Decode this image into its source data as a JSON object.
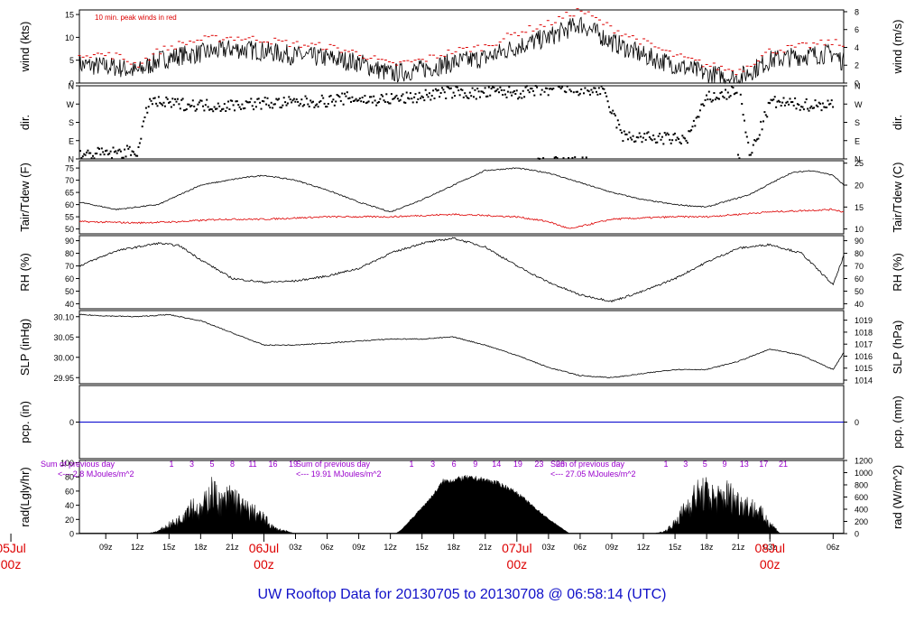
{
  "page_title": "UW Rooftop Data for 20130705  to  20130708 @ 06:58:14  (UTC)",
  "colors": {
    "axis": "#000000",
    "peak": "#dd0000",
    "dewpoint": "#dd0000",
    "precip": "#0000cc",
    "annotation": "#9900cc",
    "date_label": "#dd0000",
    "title": "#1010c8"
  },
  "x_axis": {
    "hour_ticks": [
      "09z",
      "12z",
      "15z",
      "18z",
      "21z",
      "03z",
      "06z",
      "09z",
      "12z",
      "15z",
      "18z",
      "21z",
      "03z",
      "06z",
      "09z",
      "12z",
      "15z",
      "18z",
      "21z",
      "03z",
      "06z"
    ],
    "day_labels": [
      {
        "date": "05Jul",
        "time": "00z"
      },
      {
        "date": "06Jul",
        "time": "00z"
      },
      {
        "date": "07Jul",
        "time": "00z"
      },
      {
        "date": "08Jul",
        "time": "00z"
      }
    ]
  },
  "panels": {
    "wind": {
      "ylabel": "wind (kts)",
      "ylabel_right": "wind (m/s)",
      "yticks": [
        "0",
        "5",
        "10",
        "15"
      ],
      "yticks_right": [
        "0",
        "2",
        "4",
        "6",
        "8"
      ],
      "legend": "10 min. peak winds in red"
    },
    "dir": {
      "ylabel": "dir.",
      "ylabel_right": "dir.",
      "yticks": [
        "N",
        "E",
        "S",
        "W",
        "N"
      ],
      "yticks_right": [
        "N",
        "E",
        "S",
        "W",
        "N"
      ]
    },
    "temp": {
      "ylabel": "Tair/Tdew (F)",
      "ylabel_right": "Tair/Tdew (C)",
      "yticks": [
        "50",
        "55",
        "60",
        "65",
        "70",
        "75"
      ],
      "yticks_right": [
        "10",
        "15",
        "20",
        "25"
      ]
    },
    "rh": {
      "ylabel": "RH (%)",
      "ylabel_right": "RH (%)",
      "yticks": [
        "40",
        "50",
        "60",
        "70",
        "80",
        "90"
      ],
      "yticks_right": [
        "40",
        "50",
        "60",
        "70",
        "80",
        "90"
      ]
    },
    "slp": {
      "ylabel": "SLP (inHg)",
      "ylabel_right": "SLP (hPa)",
      "yticks": [
        "29.95",
        "30.00",
        "30.05",
        "30.10"
      ],
      "yticks_right": [
        "1014",
        "1015",
        "1016",
        "1017",
        "1018",
        "1019"
      ]
    },
    "pcp": {
      "ylabel": "pcp. (in)",
      "ylabel_right": "pcp. (mm)",
      "yticks": [
        "0"
      ],
      "yticks_right": [
        "0"
      ]
    },
    "rad": {
      "ylabel": "rad(Lgly/hr)",
      "ylabel_right": "rad (W/m^2)",
      "yticks": [
        "0",
        "20",
        "40",
        "60",
        "80",
        "100"
      ],
      "yticks_right": [
        "0",
        "200",
        "400",
        "600",
        "800",
        "1000",
        "1200"
      ],
      "daily_sums": [
        {
          "line1": "Sum of previous day",
          "line2": "<--- 2.8 MJoules/m^2"
        },
        {
          "line1": "Sum of previous day",
          "line2": "<--- 19.91 MJoules/m^2"
        },
        {
          "line1": "Sum of previous day",
          "line2": "<--- 27.05 MJoules/m^2"
        }
      ],
      "hour_marks": [
        [
          "1",
          "3",
          "5",
          "8",
          "11",
          "16",
          "19"
        ],
        [
          "1",
          "3",
          "6",
          "9",
          "14",
          "19",
          "23",
          "26"
        ],
        [
          "1",
          "3",
          "5",
          "9",
          "13",
          "17",
          "21"
        ]
      ]
    }
  },
  "chart_data": {
    "type": "line",
    "title": "UW Rooftop Data for 20130705  to  20130708 @ 06:58:14  (UTC)",
    "x_unit": "hours since 05Jul 00z",
    "xlim": [
      6.5,
      79
    ],
    "series": [
      {
        "panel": "wind",
        "name": "wind (kts)",
        "x": [
          6.5,
          10,
          12,
          14,
          16,
          18,
          21,
          24,
          27,
          30,
          33,
          36,
          39,
          42,
          45,
          48,
          51,
          54,
          57,
          60,
          63,
          66,
          69,
          72,
          75,
          78,
          79
        ],
        "values": [
          4,
          3.5,
          2.5,
          5,
          6,
          6.5,
          7.5,
          7,
          6,
          5.5,
          4.5,
          2,
          3,
          4.5,
          5.5,
          8,
          10,
          13,
          9,
          6,
          4,
          2,
          1,
          5,
          6,
          6.5,
          4.5
        ]
      },
      {
        "panel": "wind",
        "name": "10 min. peak winds",
        "x": [
          6.5,
          10,
          12,
          14,
          16,
          18,
          21,
          24,
          27,
          30,
          33,
          36,
          39,
          42,
          45,
          48,
          51,
          54,
          57,
          60,
          63,
          66,
          69,
          72,
          75,
          78,
          79
        ],
        "values": [
          6.5,
          6,
          4,
          7,
          8.5,
          9.5,
          10,
          9.5,
          8.5,
          8,
          6.5,
          4,
          5,
          7,
          8,
          11,
          13,
          16,
          12,
          9,
          6,
          4,
          2.5,
          7,
          8,
          9,
          8
        ]
      },
      {
        "panel": "temp",
        "name": "Tair (F)",
        "x": [
          6.5,
          10,
          14,
          18,
          22,
          24,
          27,
          30,
          33,
          36,
          39,
          42,
          45,
          48,
          51,
          54,
          57,
          60,
          63,
          66,
          70,
          74,
          76,
          78,
          79
        ],
        "values": [
          61,
          58,
          60,
          68,
          71,
          72,
          70,
          66,
          61,
          57,
          62,
          68,
          74,
          75,
          73,
          69,
          65,
          62,
          60,
          59,
          64,
          73,
          74,
          72,
          68
        ]
      },
      {
        "panel": "temp",
        "name": "Tdew (F)",
        "x": [
          6.5,
          12,
          16,
          20,
          24,
          30,
          36,
          42,
          48,
          51,
          53,
          57,
          63,
          66,
          72,
          78,
          79
        ],
        "values": [
          53,
          52.5,
          53,
          54,
          54,
          55,
          55,
          56,
          55,
          53,
          50,
          54,
          55,
          55,
          57,
          58,
          57
        ]
      },
      {
        "panel": "rh",
        "name": "RH (%)",
        "x": [
          6.5,
          10,
          12,
          14,
          16,
          18,
          21,
          24,
          27,
          30,
          33,
          36,
          39,
          42,
          45,
          48,
          51,
          54,
          57,
          60,
          63,
          66,
          69,
          72,
          75,
          78,
          79
        ],
        "values": [
          70,
          82,
          85,
          88,
          86,
          75,
          60,
          57,
          58,
          62,
          68,
          80,
          88,
          92,
          85,
          70,
          57,
          47,
          42,
          50,
          60,
          73,
          84,
          87,
          80,
          55,
          78
        ]
      },
      {
        "panel": "slp",
        "name": "SLP (inHg)",
        "x": [
          6.5,
          9,
          12,
          15,
          18,
          21,
          24,
          27,
          30,
          33,
          36,
          39,
          42,
          45,
          48,
          51,
          54,
          57,
          60,
          63,
          66,
          69,
          72,
          75,
          78,
          79
        ],
        "values": [
          30.105,
          30.102,
          30.1,
          30.105,
          30.09,
          30.06,
          30.03,
          30.03,
          30.035,
          30.04,
          30.045,
          30.045,
          30.05,
          30.03,
          30.005,
          29.975,
          29.955,
          29.95,
          29.96,
          29.97,
          29.97,
          29.99,
          30.02,
          30.005,
          29.97,
          30.012
        ]
      },
      {
        "panel": "pcp",
        "name": "pcp. (in)",
        "x": [
          6.5,
          79
        ],
        "values": [
          0,
          0
        ]
      },
      {
        "panel": "rad",
        "name": "rad (W/m^2)",
        "x": [
          13,
          14,
          15,
          16,
          17,
          18,
          19,
          20,
          21,
          22,
          23,
          24,
          25,
          27,
          36.5,
          37,
          38,
          39,
          40,
          41,
          42,
          43,
          44,
          45,
          46,
          47,
          48,
          49,
          50,
          51,
          53,
          61,
          62,
          63,
          64,
          65,
          66,
          67,
          68,
          69,
          70,
          71,
          72,
          73
        ],
        "values": [
          0,
          60,
          200,
          320,
          700,
          500,
          1000,
          700,
          900,
          600,
          500,
          350,
          120,
          0,
          0,
          60,
          250,
          450,
          650,
          900,
          920,
          960,
          950,
          920,
          880,
          800,
          700,
          550,
          400,
          250,
          0,
          0,
          50,
          250,
          600,
          900,
          950,
          800,
          920,
          750,
          650,
          500,
          250,
          0
        ]
      }
    ],
    "direction_points": {
      "x": [
        6.5,
        8,
        10,
        12,
        13,
        14,
        16,
        18,
        20,
        22,
        24,
        26,
        28,
        30,
        32,
        34,
        36,
        38,
        40,
        42,
        44,
        46,
        48,
        50,
        52,
        54,
        56,
        58,
        60,
        62,
        64,
        66,
        68,
        69,
        70,
        72,
        74,
        76,
        78
      ],
      "values": [
        20,
        25,
        30,
        40,
        285,
        275,
        270,
        265,
        260,
        270,
        275,
        275,
        280,
        285,
        300,
        290,
        295,
        300,
        320,
        330,
        320,
        330,
        325,
        335,
        345,
        340,
        335,
        110,
        105,
        100,
        95,
        300,
        320,
        355,
        10,
        280,
        270,
        265,
        270
      ]
    },
    "direction_ticks": [
      "N",
      "E",
      "S",
      "W",
      "N"
    ]
  }
}
